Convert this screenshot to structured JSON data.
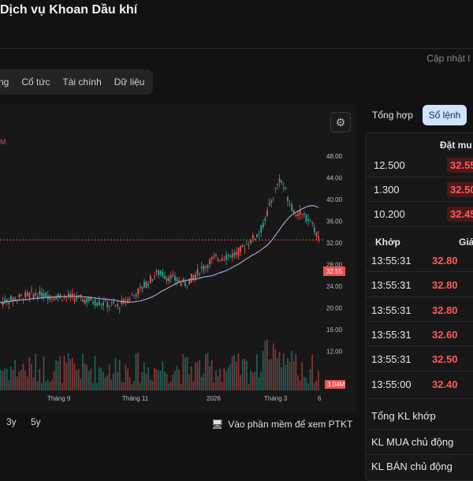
{
  "title": "Dịch vụ Khoan Dầu khí",
  "updated_label": "Cập nhật l",
  "tabs": [
    "ng",
    "Cổ tức",
    "Tài chính",
    "Dữ liệu"
  ],
  "chart": {
    "legend_text": "M",
    "y_ticks": [
      "48.00",
      "44.00",
      "40.00",
      "36.00",
      "32.00",
      "28.00",
      "24.00",
      "20.00",
      "16.00",
      "12.00"
    ],
    "x_ticks": [
      "Tháng 9",
      "Tháng 11",
      "2026",
      "Tháng 3",
      "6"
    ],
    "last_price_label": "32.55",
    "volume_label": "3.04M",
    "colors": {
      "up": "#26a69a",
      "down": "#ef5350",
      "ma": "#9aa7c7",
      "price_line": "#ef5350"
    }
  },
  "ranges": [
    "3y",
    "5y"
  ],
  "ptkt_label": "Vào phần mềm để xem PTKT",
  "segments": [
    "Tổng hợp",
    "Sổ lệnh"
  ],
  "orderbook": {
    "bid_header": "Đặt mu",
    "bids": [
      {
        "volume": "12.500",
        "price": "32.55"
      },
      {
        "volume": "1.300",
        "price": "32.50"
      },
      {
        "volume": "10.200",
        "price": "32.45"
      }
    ]
  },
  "trades": {
    "header_time": "Khớp",
    "header_price": "Giá",
    "rows": [
      {
        "time": "13:55:31",
        "price": "32.80"
      },
      {
        "time": "13:55:31",
        "price": "32.80"
      },
      {
        "time": "13:55:31",
        "price": "32.80"
      },
      {
        "time": "13:55:31",
        "price": "32.60"
      },
      {
        "time": "13:55:31",
        "price": "32.50"
      },
      {
        "time": "13:55:00",
        "price": "32.40"
      }
    ]
  },
  "summary": [
    "Tổng KL khớp",
    "KL MUA chủ động",
    "KL BÁN chủ động"
  ]
}
